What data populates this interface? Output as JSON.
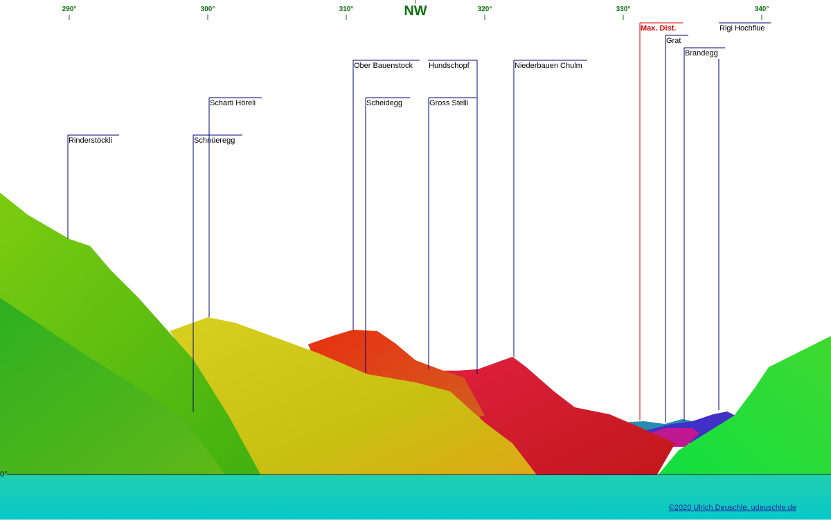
{
  "compass": {
    "direction": "NW",
    "degrees": [
      "290°",
      "300°",
      "310°",
      "320°",
      "330°",
      "340°"
    ]
  },
  "horizon_label": "0°",
  "peaks": [
    {
      "name": "Rinderstöckli"
    },
    {
      "name": "Schnüeregg"
    },
    {
      "name": "Scharti Höreli"
    },
    {
      "name": "Ober Bauenstock"
    },
    {
      "name": "Scheidegg"
    },
    {
      "name": "Hundschopf"
    },
    {
      "name": "Gross Stelli"
    },
    {
      "name": "Niederbauen Chulm"
    },
    {
      "name": "Max. Dist."
    },
    {
      "name": "Grat"
    },
    {
      "name": "Brandegg"
    },
    {
      "name": "Rigi Hochflue"
    }
  ],
  "copyright": "©2020 Ulrich Deuschle, udeuschle.de"
}
